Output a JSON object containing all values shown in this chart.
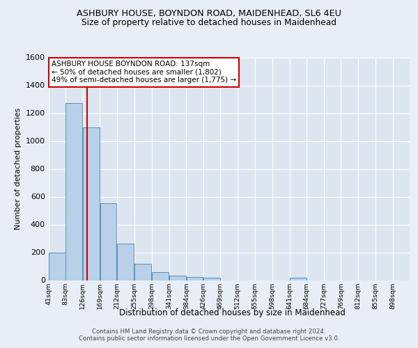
{
  "title1": "ASHBURY HOUSE, BOYNDON ROAD, MAIDENHEAD, SL6 4EU",
  "title2": "Size of property relative to detached houses in Maidenhead",
  "xlabel": "Distribution of detached houses by size in Maidenhead",
  "ylabel": "Number of detached properties",
  "footer1": "Contains HM Land Registry data © Crown copyright and database right 2024.",
  "footer2": "Contains public sector information licensed under the Open Government Licence v3.0.",
  "annotation_line1": "ASHBURY HOUSE BOYNDON ROAD: 137sqm",
  "annotation_line2": "← 50% of detached houses are smaller (1,802)",
  "annotation_line3": "49% of semi-detached houses are larger (1,775) →",
  "bar_edges": [
    41,
    83,
    126,
    169,
    212,
    255,
    298,
    341,
    384,
    426,
    469,
    512,
    555,
    598,
    641,
    684,
    727,
    769,
    812,
    855,
    898
  ],
  "bar_heights": [
    200,
    1275,
    1100,
    555,
    265,
    120,
    60,
    35,
    25,
    18,
    0,
    0,
    0,
    0,
    18,
    0,
    0,
    0,
    0,
    0
  ],
  "bar_color": "#b8d0e8",
  "bar_edge_color": "#5a8fba",
  "vline_x": 137,
  "vline_color": "#cc0000",
  "annotation_box_edgecolor": "#cc0000",
  "plot_bg_color": "#dde6f0",
  "fig_bg_color": "#e8eef8",
  "grid_color": "#c8d4e4",
  "ylim_max": 1600,
  "yticks": [
    0,
    200,
    400,
    600,
    800,
    1000,
    1200,
    1400,
    1600
  ]
}
